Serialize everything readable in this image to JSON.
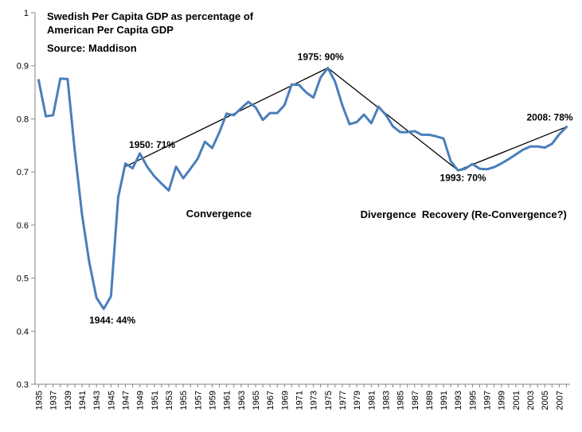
{
  "chart_data": {
    "type": "line",
    "title_lines": [
      "Swedish Per Capita GDP as percentage of",
      "American Per Capita GDP"
    ],
    "source": "Source: Maddison",
    "xlabel": "",
    "ylabel": "",
    "ylim": [
      0.3,
      1.0
    ],
    "yticks": [
      "0.3",
      "0.4",
      "0.5",
      "0.6",
      "0.7",
      "0.8",
      "0.9",
      "1"
    ],
    "x_tick_labels": [
      "1935",
      "1937",
      "1939",
      "1941",
      "1943",
      "1945",
      "1947",
      "1949",
      "1951",
      "1953",
      "1955",
      "1957",
      "1959",
      "1961",
      "1963",
      "1965",
      "1967",
      "1969",
      "1971",
      "1973",
      "1975",
      "1977",
      "1979",
      "1981",
      "1983",
      "1985",
      "1987",
      "1989",
      "1991",
      "1993",
      "1995",
      "1997",
      "1999",
      "2001",
      "2003",
      "2005",
      "2007"
    ],
    "grid": false,
    "legend": "none",
    "line_color": "#4a7ebb",
    "trend_color": "#000000",
    "series": [
      {
        "x": [
          1935,
          1936,
          1937,
          1938,
          1939,
          1940,
          1941,
          1942,
          1943,
          1944,
          1945,
          1946,
          1947,
          1948,
          1949,
          1950,
          1951,
          1952,
          1953,
          1954,
          1955,
          1956,
          1957,
          1958,
          1959,
          1960,
          1961,
          1962,
          1963,
          1964,
          1965,
          1966,
          1967,
          1968,
          1969,
          1970,
          1971,
          1972,
          1973,
          1974,
          1975,
          1976,
          1977,
          1978,
          1979,
          1980,
          1981,
          1982,
          1983,
          1984,
          1985,
          1986,
          1987,
          1988,
          1989,
          1990,
          1991,
          1992,
          1993,
          1994,
          1995,
          1996,
          1997,
          1998,
          1999,
          2000,
          2001,
          2002,
          2003,
          2004,
          2005,
          2006,
          2007,
          2008
        ],
        "values": [
          0.873,
          0.805,
          0.807,
          0.876,
          0.875,
          0.74,
          0.62,
          0.53,
          0.463,
          0.442,
          0.466,
          0.652,
          0.716,
          0.707,
          0.735,
          0.71,
          0.692,
          0.678,
          0.665,
          0.71,
          0.688,
          0.706,
          0.725,
          0.757,
          0.745,
          0.775,
          0.81,
          0.807,
          0.82,
          0.832,
          0.822,
          0.798,
          0.811,
          0.811,
          0.826,
          0.865,
          0.864,
          0.85,
          0.84,
          0.878,
          0.896,
          0.87,
          0.826,
          0.79,
          0.794,
          0.808,
          0.792,
          0.823,
          0.808,
          0.786,
          0.775,
          0.775,
          0.777,
          0.77,
          0.77,
          0.767,
          0.763,
          0.72,
          0.703,
          0.706,
          0.715,
          0.706,
          0.705,
          0.709,
          0.716,
          0.724,
          0.733,
          0.742,
          0.748,
          0.748,
          0.746,
          0.753,
          0.771,
          0.785
        ]
      }
    ],
    "trend_lines": [
      {
        "x": [
          1947,
          1975
        ],
        "y": [
          0.71,
          0.896
        ]
      },
      {
        "x": [
          1975,
          1993
        ],
        "y": [
          0.896,
          0.703
        ]
      },
      {
        "x": [
          1993,
          2008
        ],
        "y": [
          0.703,
          0.785
        ]
      }
    ],
    "annotations": [
      {
        "text": "1950: 71%",
        "x": 1947.5,
        "y": 0.745,
        "anchor": "start"
      },
      {
        "text": "1944: 44%",
        "x": 1942.0,
        "y": 0.415,
        "anchor": "start"
      },
      {
        "text": "1975: 90%",
        "x": 1970.8,
        "y": 0.911,
        "anchor": "start"
      },
      {
        "text": "1993: 70%",
        "x": 1990.5,
        "y": 0.683,
        "anchor": "start"
      },
      {
        "text": "2008: 78%",
        "x": 2002.5,
        "y": 0.797,
        "anchor": "start"
      }
    ],
    "phase_labels": [
      {
        "text": "Convergence",
        "x": 1955.4,
        "y": 0.615
      },
      {
        "text": "Divergence",
        "x": 1979.5,
        "y": 0.613
      },
      {
        "text": "Recovery (Re-Convergence?)",
        "x": 1988.0,
        "y": 0.613
      }
    ]
  }
}
